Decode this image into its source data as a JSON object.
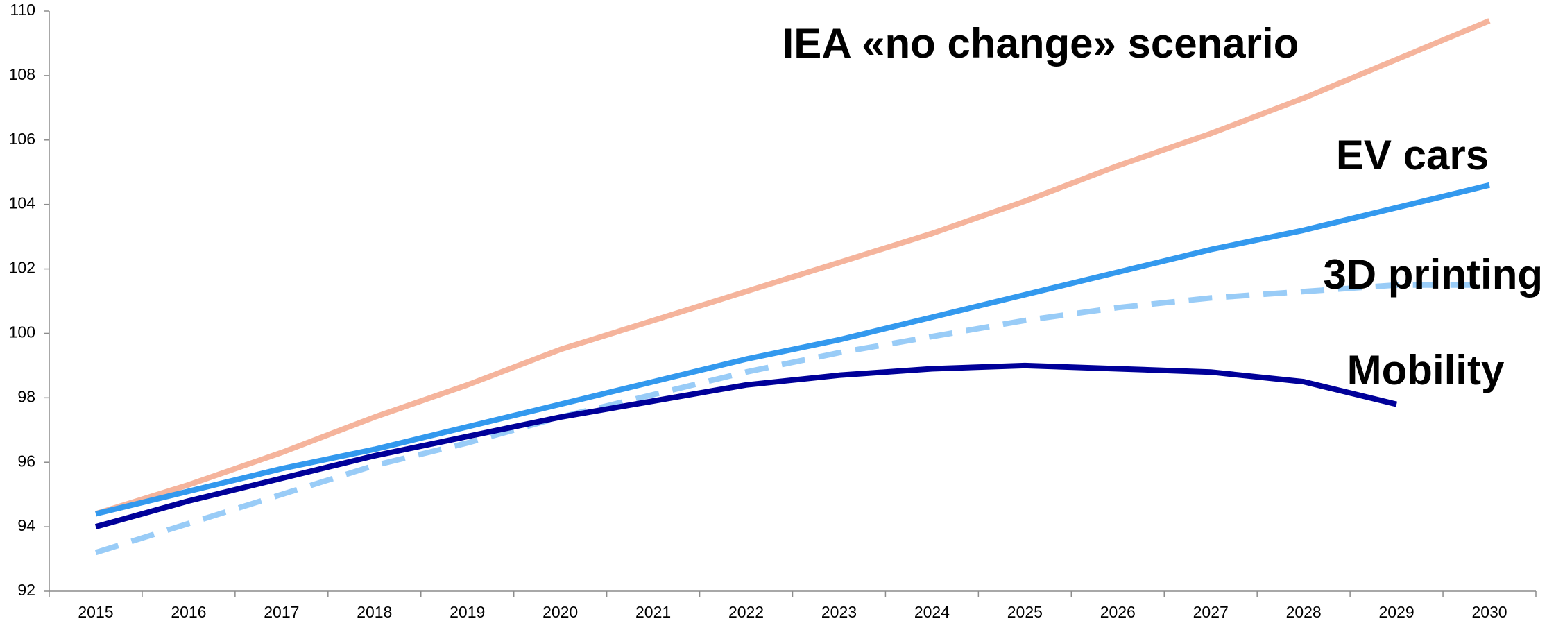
{
  "chart_data": {
    "type": "line",
    "categories": [
      "2015",
      "2016",
      "2017",
      "2018",
      "2019",
      "2020",
      "2021",
      "2022",
      "2023",
      "2024",
      "2025",
      "2026",
      "2027",
      "2028",
      "2029",
      "2030"
    ],
    "series": [
      {
        "name": "IEA «no change» scenario",
        "color": "#f5b49c",
        "values": [
          94.4,
          95.3,
          96.3,
          97.4,
          98.4,
          99.5,
          100.4,
          101.3,
          102.2,
          103.1,
          104.1,
          105.2,
          106.2,
          107.3,
          108.5,
          109.7
        ]
      },
      {
        "name": "EV cars",
        "color": "#3399ee",
        "values": [
          94.4,
          95.1,
          95.8,
          96.4,
          97.1,
          97.8,
          98.5,
          99.2,
          99.8,
          100.5,
          101.2,
          101.9,
          102.6,
          103.2,
          103.9,
          104.6
        ]
      },
      {
        "name": "3D printing",
        "color": "#99ccf7",
        "dashed": true,
        "values": [
          93.2,
          94.1,
          95.0,
          95.9,
          96.6,
          97.4,
          98.1,
          98.8,
          99.4,
          99.9,
          100.4,
          100.8,
          101.1,
          101.3,
          101.5,
          101.5
        ]
      },
      {
        "name": "Mobility",
        "color": "#000099",
        "values": [
          94.0,
          94.8,
          95.5,
          96.2,
          96.8,
          97.4,
          97.9,
          98.4,
          98.7,
          98.9,
          99.0,
          98.9,
          98.8,
          98.5,
          97.8,
          null
        ]
      }
    ],
    "ylim": [
      92,
      110
    ],
    "yticks": [
      92,
      94,
      96,
      98,
      100,
      102,
      104,
      106,
      108,
      110
    ],
    "grid": false
  }
}
